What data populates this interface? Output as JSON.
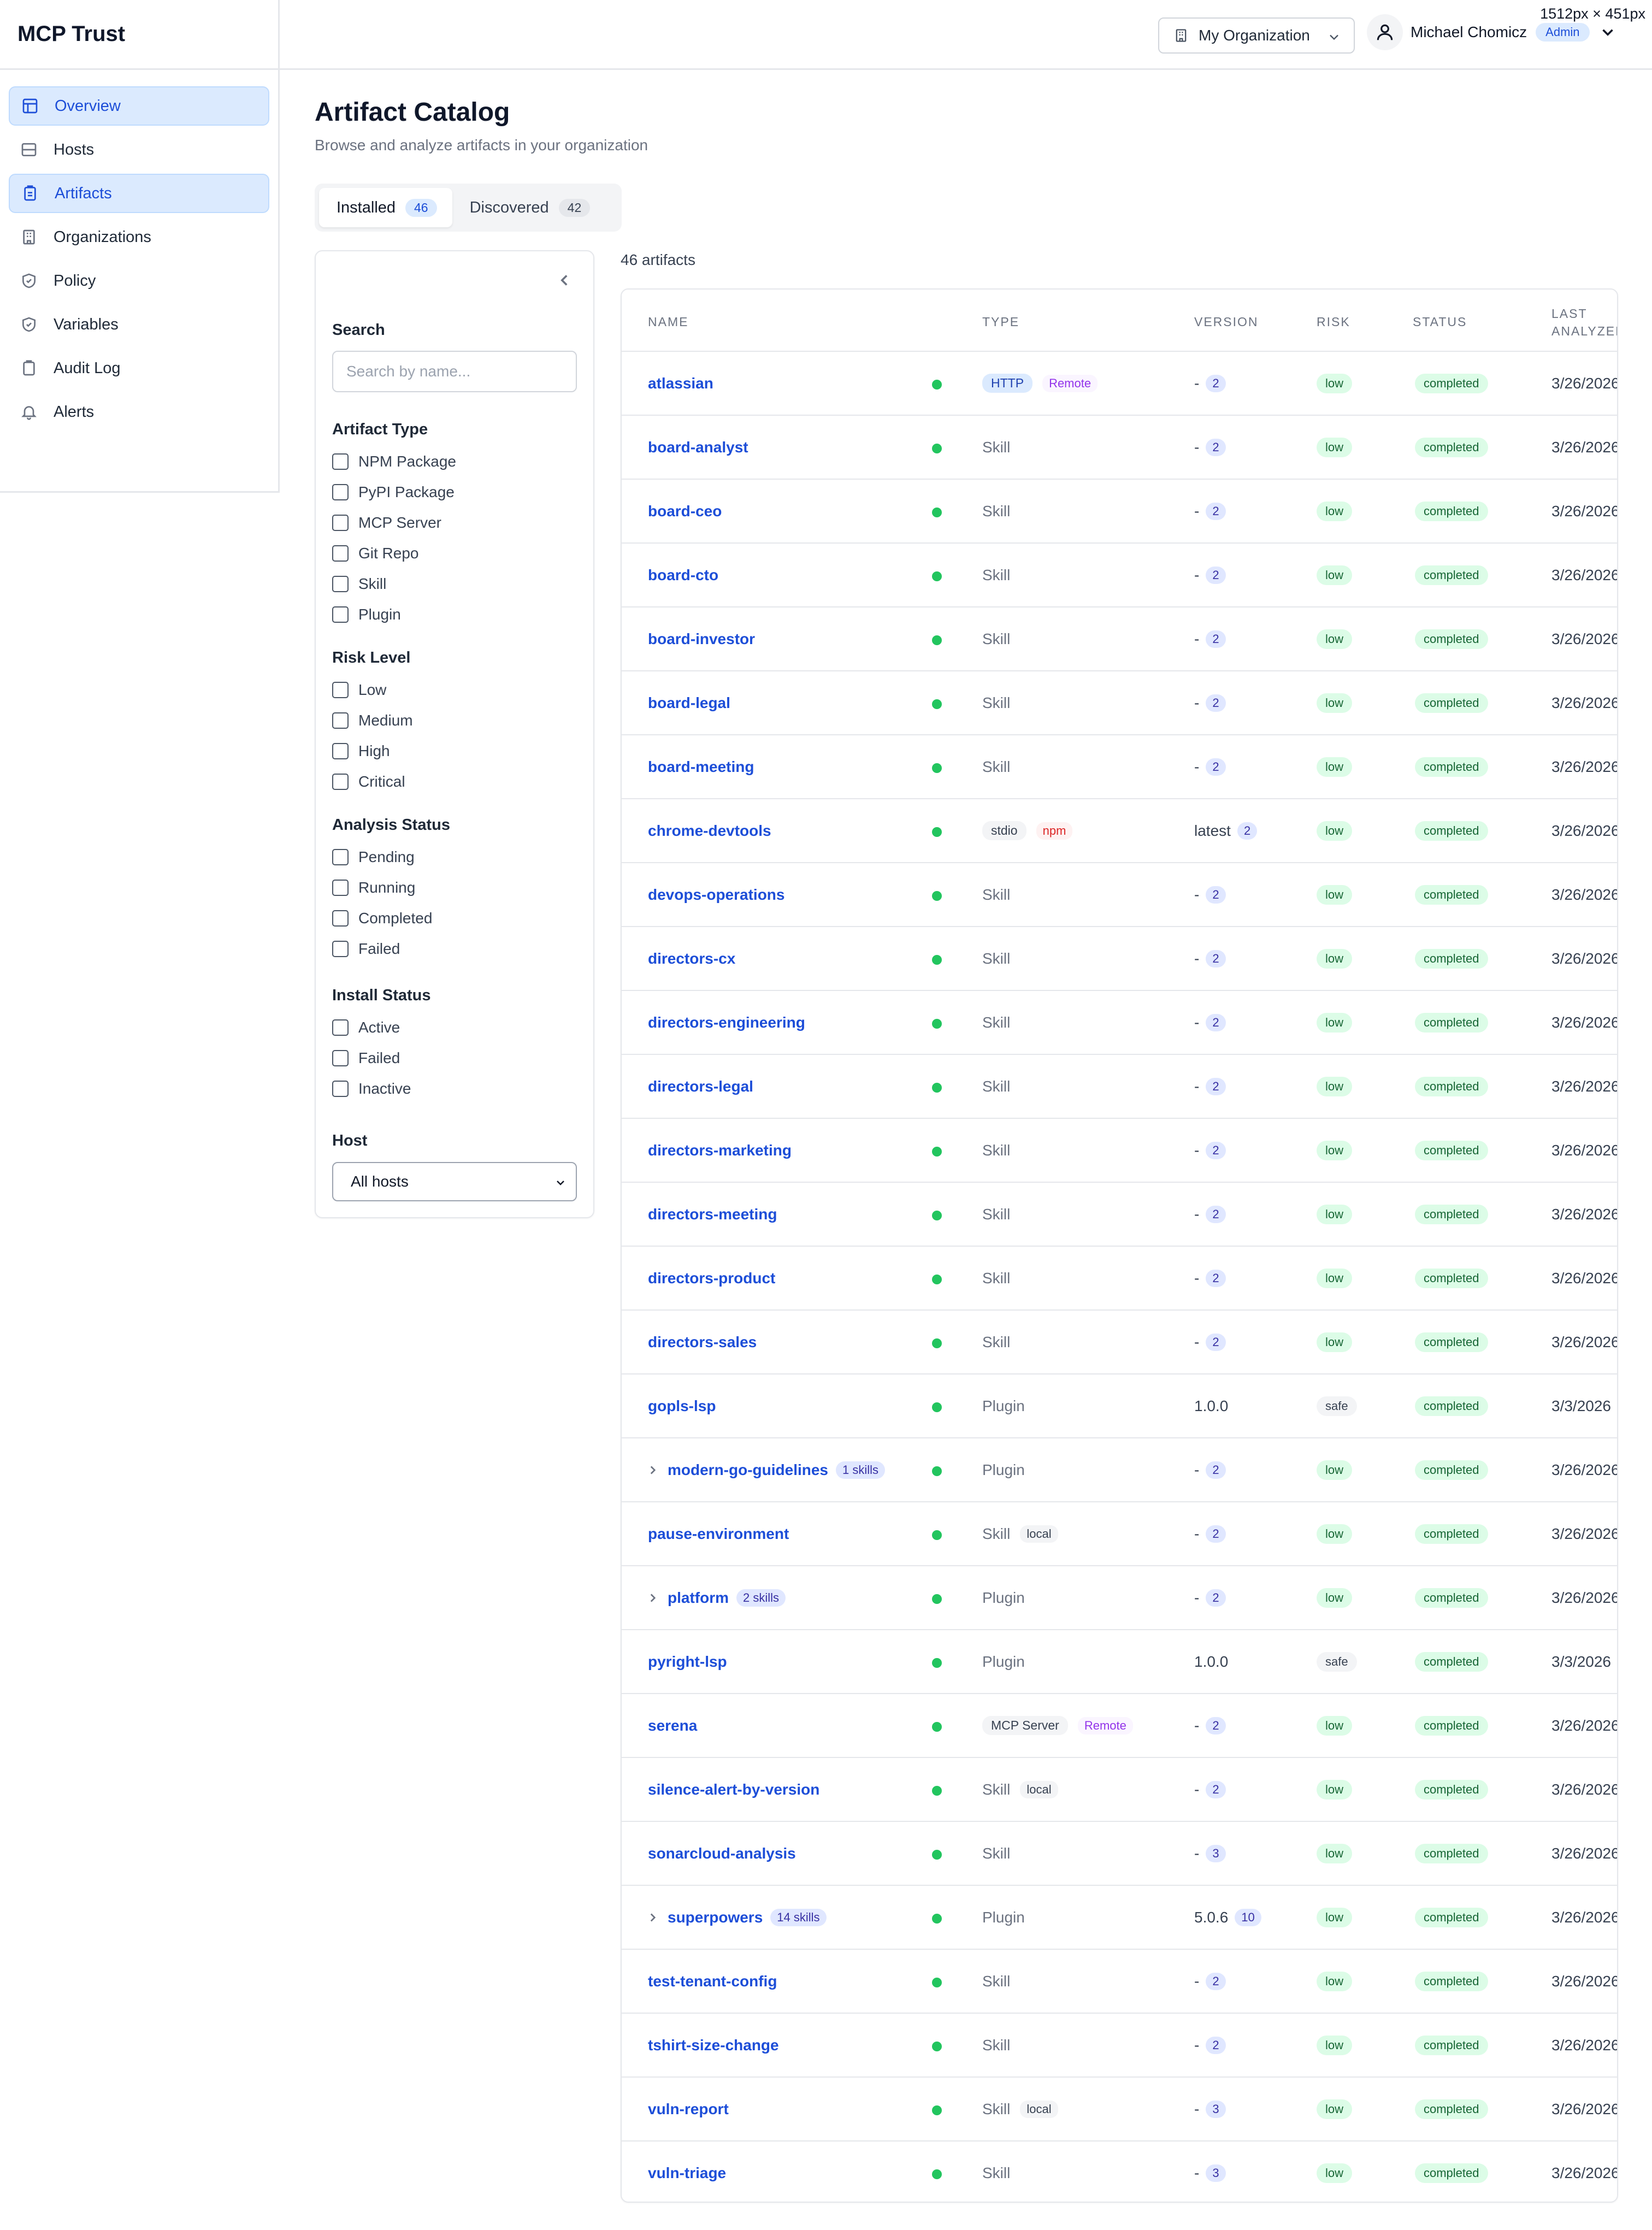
{
  "app": {
    "title": "MCP Trust",
    "viewport_note": "1512px × 451px"
  },
  "sidebar": {
    "items": [
      {
        "label": "Overview",
        "icon": "dashboard-icon",
        "active": true
      },
      {
        "label": "Hosts",
        "icon": "server-icon",
        "active": false
      },
      {
        "label": "Artifacts",
        "icon": "clipboard-icon",
        "active": true
      },
      {
        "label": "Organizations",
        "icon": "building-icon",
        "active": false
      },
      {
        "label": "Policy",
        "icon": "shield-check-icon",
        "active": false
      },
      {
        "label": "Variables",
        "icon": "shield-icon",
        "active": false
      },
      {
        "label": "Audit Log",
        "icon": "clipboard-list-icon",
        "active": false
      },
      {
        "label": "Alerts",
        "icon": "bell-icon",
        "active": false
      }
    ]
  },
  "header": {
    "org_selector": "My Organization",
    "user_name": "Michael Chomicz",
    "user_role": "Admin"
  },
  "main": {
    "title": "Artifact Catalog",
    "subtitle": "Browse and analyze artifacts in your organization",
    "tabs": [
      {
        "label": "Installed",
        "count": "46",
        "active": true
      },
      {
        "label": "Discovered",
        "count": "42",
        "active": false
      }
    ],
    "artifact_count": "46 artifacts"
  },
  "filters": {
    "search_label": "Search",
    "search_placeholder": "Search by name...",
    "artifact_type": {
      "label": "Artifact Type",
      "options": [
        "NPM Package",
        "PyPI Package",
        "MCP Server",
        "Git Repo",
        "Skill",
        "Plugin"
      ]
    },
    "risk_level": {
      "label": "Risk Level",
      "options": [
        "Low",
        "Medium",
        "High",
        "Critical"
      ]
    },
    "analysis_status": {
      "label": "Analysis Status",
      "options": [
        "Pending",
        "Running",
        "Completed",
        "Failed"
      ]
    },
    "install_status": {
      "label": "Install Status",
      "options": [
        "Active",
        "Failed",
        "Inactive"
      ]
    },
    "host": {
      "label": "Host",
      "selected": "All hosts"
    }
  },
  "table": {
    "columns": {
      "name": "Name",
      "type": "Type",
      "version": "Version",
      "risk": "Risk",
      "status": "Status",
      "last": "Last Analyzed"
    },
    "rows": [
      {
        "name": "atlassian",
        "type": "HTTP",
        "type_style": "http",
        "tag": "Remote",
        "tag_style": "remote",
        "version": "-",
        "ver_count": "2",
        "risk": "low",
        "status": "completed",
        "last": "3/26/2026"
      },
      {
        "name": "board-analyst",
        "type": "Skill",
        "version": "-",
        "ver_count": "2",
        "risk": "low",
        "status": "completed",
        "last": "3/26/2026"
      },
      {
        "name": "board-ceo",
        "type": "Skill",
        "version": "-",
        "ver_count": "2",
        "risk": "low",
        "status": "completed",
        "last": "3/26/2026"
      },
      {
        "name": "board-cto",
        "type": "Skill",
        "version": "-",
        "ver_count": "2",
        "risk": "low",
        "status": "completed",
        "last": "3/26/2026"
      },
      {
        "name": "board-investor",
        "type": "Skill",
        "version": "-",
        "ver_count": "2",
        "risk": "low",
        "status": "completed",
        "last": "3/26/2026"
      },
      {
        "name": "board-legal",
        "type": "Skill",
        "version": "-",
        "ver_count": "2",
        "risk": "low",
        "status": "completed",
        "last": "3/26/2026"
      },
      {
        "name": "board-meeting",
        "type": "Skill",
        "version": "-",
        "ver_count": "2",
        "risk": "low",
        "status": "completed",
        "last": "3/26/2026"
      },
      {
        "name": "chrome-devtools",
        "type": "stdio",
        "type_style": "gray",
        "tag": "npm",
        "tag_style": "npm",
        "version": "latest",
        "ver_count": "2",
        "risk": "low",
        "status": "completed",
        "last": "3/26/2026"
      },
      {
        "name": "devops-operations",
        "type": "Skill",
        "version": "-",
        "ver_count": "2",
        "risk": "low",
        "status": "completed",
        "last": "3/26/2026"
      },
      {
        "name": "directors-cx",
        "type": "Skill",
        "version": "-",
        "ver_count": "2",
        "risk": "low",
        "status": "completed",
        "last": "3/26/2026"
      },
      {
        "name": "directors-engineering",
        "type": "Skill",
        "version": "-",
        "ver_count": "2",
        "risk": "low",
        "status": "completed",
        "last": "3/26/2026"
      },
      {
        "name": "directors-legal",
        "type": "Skill",
        "version": "-",
        "ver_count": "2",
        "risk": "low",
        "status": "completed",
        "last": "3/26/2026"
      },
      {
        "name": "directors-marketing",
        "type": "Skill",
        "version": "-",
        "ver_count": "2",
        "risk": "low",
        "status": "completed",
        "last": "3/26/2026"
      },
      {
        "name": "directors-meeting",
        "type": "Skill",
        "version": "-",
        "ver_count": "2",
        "risk": "low",
        "status": "completed",
        "last": "3/26/2026"
      },
      {
        "name": "directors-product",
        "type": "Skill",
        "version": "-",
        "ver_count": "2",
        "risk": "low",
        "status": "completed",
        "last": "3/26/2026"
      },
      {
        "name": "directors-sales",
        "type": "Skill",
        "version": "-",
        "ver_count": "2",
        "risk": "low",
        "status": "completed",
        "last": "3/26/2026"
      },
      {
        "name": "gopls-lsp",
        "type": "Plugin",
        "version": "1.0.0",
        "risk": "safe",
        "status": "completed",
        "last": "3/3/2026"
      },
      {
        "name": "modern-go-guidelines",
        "expandable": true,
        "skills": "1 skills",
        "type": "Plugin",
        "version": "-",
        "ver_count": "2",
        "risk": "low",
        "status": "completed",
        "last": "3/26/2026"
      },
      {
        "name": "pause-environment",
        "type": "Skill",
        "tag": "local",
        "tag_style": "local",
        "version": "-",
        "ver_count": "2",
        "risk": "low",
        "status": "completed",
        "last": "3/26/2026"
      },
      {
        "name": "platform",
        "expandable": true,
        "skills": "2 skills",
        "type": "Plugin",
        "version": "-",
        "ver_count": "2",
        "risk": "low",
        "status": "completed",
        "last": "3/26/2026"
      },
      {
        "name": "pyright-lsp",
        "type": "Plugin",
        "version": "1.0.0",
        "risk": "safe",
        "status": "completed",
        "last": "3/3/2026"
      },
      {
        "name": "serena",
        "type": "MCP Server",
        "type_style": "gray",
        "tag": "Remote",
        "tag_style": "remote",
        "version": "-",
        "ver_count": "2",
        "risk": "low",
        "status": "completed",
        "last": "3/26/2026"
      },
      {
        "name": "silence-alert-by-version",
        "type": "Skill",
        "tag": "local",
        "tag_style": "local",
        "version": "-",
        "ver_count": "2",
        "risk": "low",
        "status": "completed",
        "last": "3/26/2026"
      },
      {
        "name": "sonarcloud-analysis",
        "type": "Skill",
        "version": "-",
        "ver_count": "3",
        "risk": "low",
        "status": "completed",
        "last": "3/26/2026"
      },
      {
        "name": "superpowers",
        "expandable": true,
        "skills": "14 skills",
        "type": "Plugin",
        "version": "5.0.6",
        "ver_count": "10",
        "risk": "low",
        "status": "completed",
        "last": "3/26/2026"
      },
      {
        "name": "test-tenant-config",
        "type": "Skill",
        "version": "-",
        "ver_count": "2",
        "risk": "low",
        "status": "completed",
        "last": "3/26/2026"
      },
      {
        "name": "tshirt-size-change",
        "type": "Skill",
        "version": "-",
        "ver_count": "2",
        "risk": "low",
        "status": "completed",
        "last": "3/26/2026"
      },
      {
        "name": "vuln-report",
        "type": "Skill",
        "tag": "local",
        "tag_style": "local",
        "version": "-",
        "ver_count": "3",
        "risk": "low",
        "status": "completed",
        "last": "3/26/2026"
      },
      {
        "name": "vuln-triage",
        "type": "Skill",
        "version": "-",
        "ver_count": "3",
        "risk": "low",
        "status": "completed",
        "last": "3/26/2026"
      }
    ]
  }
}
